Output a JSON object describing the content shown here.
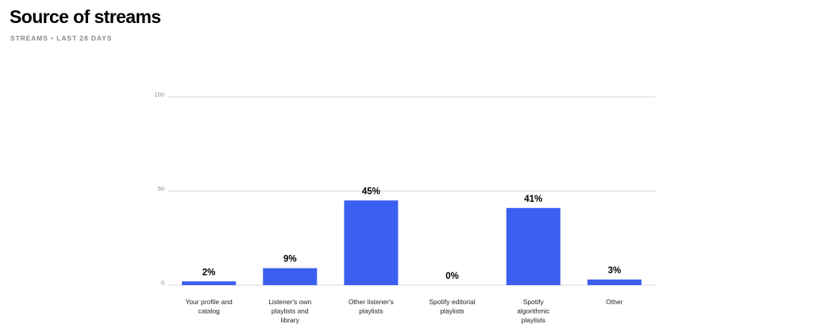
{
  "header": {
    "title": "Source of streams",
    "subtitle": "STREAMS • LAST 28 DAYS"
  },
  "colors": {
    "bar": "#3b5ff0",
    "grid": "#d9d9d9",
    "tick_text": "#8a8a8a"
  },
  "chart_data": {
    "type": "bar",
    "categories": [
      [
        "Your profile and",
        "catalog"
      ],
      [
        "Listener's own",
        "playlists and",
        "library"
      ],
      [
        "Other listener's",
        "playlists"
      ],
      [
        "Spotify editorial",
        "playlists"
      ],
      [
        "Spotify",
        "algorithmic",
        "playlists"
      ],
      [
        "Other"
      ]
    ],
    "values": [
      2,
      9,
      45,
      0,
      41,
      3
    ],
    "data_labels": [
      "2%",
      "9%",
      "45%",
      "0%",
      "41%",
      "3%"
    ],
    "yticks": [
      0,
      50,
      100
    ],
    "ylim": [
      0,
      100
    ],
    "grid": true
  }
}
